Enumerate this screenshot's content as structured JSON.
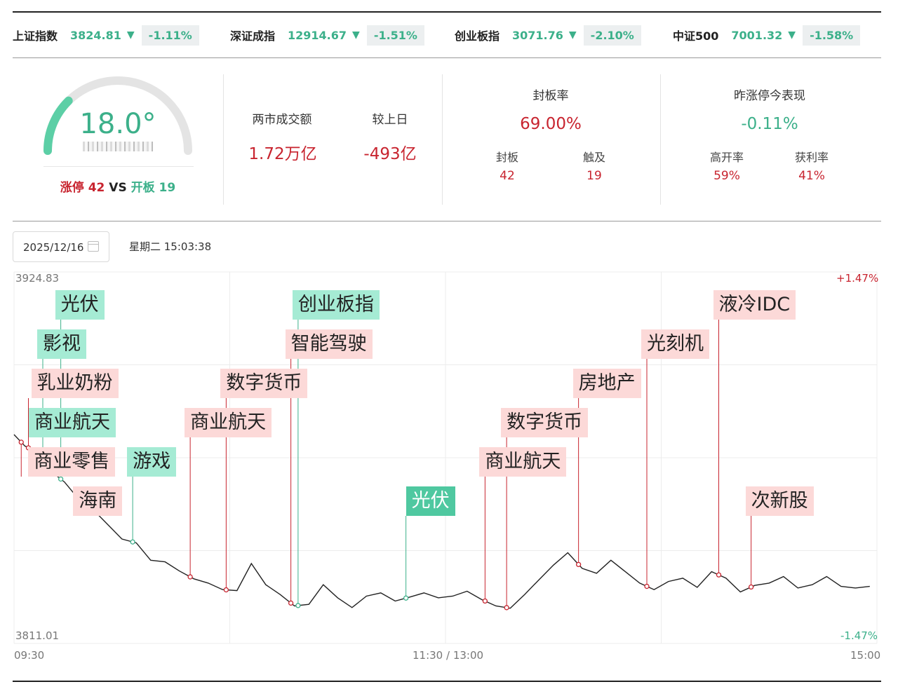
{
  "indices": [
    {
      "name": "上证指数",
      "value": "3824.81",
      "arrow": "▼",
      "change": "-1.11%"
    },
    {
      "name": "深证成指",
      "value": "12914.67",
      "arrow": "▼",
      "change": "-1.51%"
    },
    {
      "name": "创业板指",
      "value": "3071.76",
      "arrow": "▼",
      "change": "-2.10%"
    },
    {
      "name": "中证500",
      "value": "7001.32",
      "arrow": "▼",
      "change": "-1.58%"
    }
  ],
  "sentiment": {
    "temperature": "18.0°",
    "temperature_level": 0.18,
    "limit_up_label": "涨停",
    "limit_up_count": "42",
    "vs_label": "VS",
    "open_board_label": "开板",
    "open_board_count": "19"
  },
  "turnover": {
    "label": "两市成交额",
    "value": "1.72万亿",
    "compare_label": "较上日",
    "compare_value": "-493亿"
  },
  "seal_rate": {
    "label": "封板率",
    "value": "69.00%",
    "sealed_label": "封板",
    "sealed_value": "42",
    "touched_label": "触及",
    "touched_value": "19"
  },
  "yesterday_limit_up": {
    "label": "昨涨停今表现",
    "value": "-0.11%",
    "high_open_label": "高开率",
    "high_open_value": "59%",
    "profit_label": "获利率",
    "profit_value": "41%"
  },
  "date_picker": {
    "value": "2025/12/16",
    "icon": "calendar-icon"
  },
  "timestamp": "星期二 15:03:38",
  "chart_data": {
    "type": "line",
    "title": "",
    "y_max_label": "3924.83",
    "y_min_label": "3811.01",
    "pct_max_label": "+1.47%",
    "pct_min_label": "-1.47%",
    "ylim": [
      3811.01,
      3924.83
    ],
    "x_ticks": [
      "09:30",
      "11:30 / 13:00",
      "15:00"
    ],
    "x_minutes": [
      0,
      3,
      6,
      10,
      14,
      18,
      22,
      26,
      30,
      34,
      38,
      42,
      46,
      50,
      54,
      58,
      62,
      66,
      70,
      74,
      78,
      82,
      86,
      90,
      94,
      98,
      102,
      106,
      110,
      114,
      118,
      122,
      126,
      130,
      134,
      138,
      142,
      146,
      150,
      154,
      158,
      162,
      166,
      170,
      174,
      178,
      182,
      186,
      190,
      194,
      198,
      202,
      206,
      210,
      214,
      218,
      222,
      226,
      230,
      234,
      238
    ],
    "values": [
      3875.0,
      3871.5,
      3869.8,
      3864.0,
      3860.5,
      3855.2,
      3852.0,
      3847.5,
      3843.0,
      3841.8,
      3836.5,
      3836.0,
      3833.2,
      3830.8,
      3829.5,
      3827.5,
      3827.2,
      3835.5,
      3829.0,
      3826.0,
      3822.5,
      3823.0,
      3829.0,
      3825.0,
      3822.0,
      3825.5,
      3826.5,
      3824.0,
      3825.2,
      3826.5,
      3825.0,
      3825.5,
      3827.0,
      3824.5,
      3822.5,
      3821.8,
      3826.0,
      3830.5,
      3835.0,
      3838.8,
      3834.0,
      3832.5,
      3836.5,
      3833.0,
      3829.5,
      3827.5,
      3830.0,
      3831.0,
      3828.2,
      3833.0,
      3831.0,
      3826.8,
      3828.8,
      3829.5,
      3831.5,
      3828.0,
      3829.0,
      3831.5,
      3828.5,
      3828.0,
      3828.5
    ],
    "markers": [
      {
        "label": "商业零售",
        "minute": 2,
        "color": "red"
      },
      {
        "label": "商业航天",
        "minute": 8,
        "color": "green"
      },
      {
        "label": "乳业奶粉",
        "minute": 4,
        "color": "red"
      },
      {
        "label": "影视",
        "minute": 8,
        "color": "green"
      },
      {
        "label": "光伏",
        "minute": 13,
        "color": "green"
      },
      {
        "label": "海南",
        "minute": 18,
        "color": "red"
      },
      {
        "label": "游戏",
        "minute": 33,
        "color": "green"
      },
      {
        "label": "商业航天",
        "minute": 49,
        "color": "red"
      },
      {
        "label": "数字货币",
        "minute": 59,
        "color": "red"
      },
      {
        "label": "智能驾驶",
        "minute": 77,
        "color": "red"
      },
      {
        "label": "创业板指",
        "minute": 79,
        "color": "green"
      },
      {
        "label": "光伏",
        "minute": 109,
        "color": "green-solid"
      },
      {
        "label": "商业航天",
        "minute": 131,
        "color": "red"
      },
      {
        "label": "数字货币",
        "minute": 137,
        "color": "red"
      },
      {
        "label": "房地产",
        "minute": 157,
        "color": "red"
      },
      {
        "label": "光刻机",
        "minute": 176,
        "color": "red"
      },
      {
        "label": "液冷IDC",
        "minute": 196,
        "color": "red"
      },
      {
        "label": "次新股",
        "minute": 205,
        "color": "red"
      }
    ]
  }
}
